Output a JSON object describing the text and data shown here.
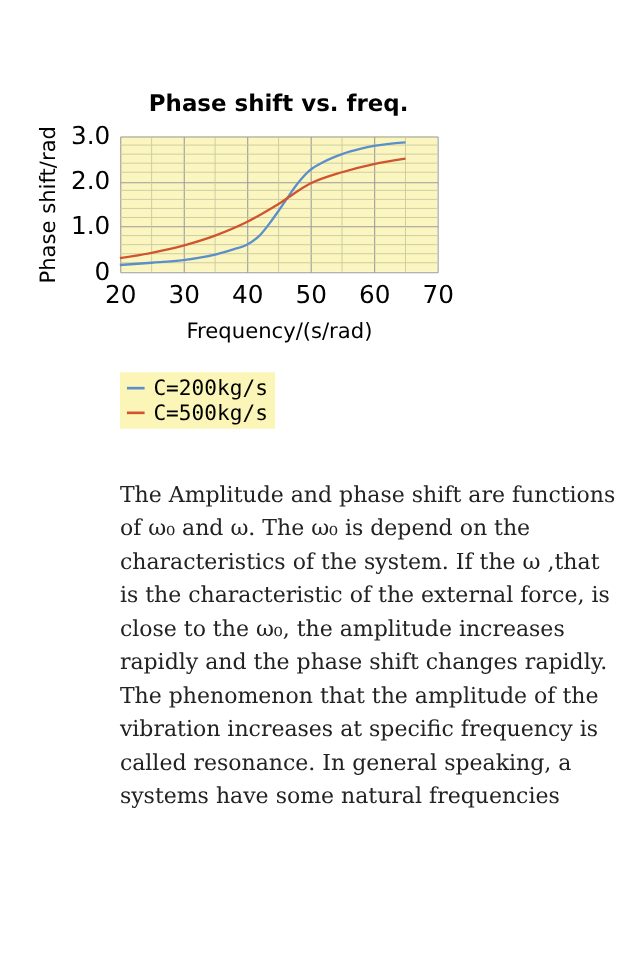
{
  "chart_data": {
    "type": "line",
    "title": "Phase shift vs. freq.",
    "xlabel": "Frequency/(s/rad)",
    "ylabel": "Phase shift/rad",
    "xlim": [
      20,
      70
    ],
    "xticks": [
      20,
      30,
      40,
      50,
      60,
      70
    ],
    "ylim": [
      0,
      3
    ],
    "yticks": [
      0,
      {
        "value": 1,
        "label": "1.0"
      },
      {
        "value": 2,
        "label": "2.0"
      },
      {
        "value": 3,
        "label": "3.0"
      }
    ],
    "grid": true,
    "legend": "bottom",
    "marker": "none",
    "line_style": "solid",
    "series": [
      {
        "name": "C=200kg/s",
        "color": "#5b8fc9",
        "x": [
          20,
          25,
          30,
          35,
          38,
          40,
          42,
          44,
          46,
          48,
          50,
          52,
          55,
          58,
          60,
          65
        ],
        "values": [
          0.15,
          0.2,
          0.26,
          0.38,
          0.5,
          0.6,
          0.8,
          1.15,
          1.55,
          1.95,
          2.25,
          2.42,
          2.6,
          2.72,
          2.78,
          2.86
        ]
      },
      {
        "name": "C=500kg/s",
        "color": "#d0542e",
        "x": [
          20,
          25,
          30,
          35,
          40,
          45,
          50,
          55,
          60,
          65
        ],
        "values": [
          0.3,
          0.42,
          0.58,
          0.8,
          1.1,
          1.5,
          1.95,
          2.2,
          2.38,
          2.5
        ]
      }
    ],
    "annotations": [
      "The Amplitude and phase shift are functions",
      "of ω₀ and ω. The ω₀ is depend on the",
      "characteristics of the system. If the ω ,that",
      "is the characteristic of the external force, is",
      "close to the ω₀, the amplitude increases",
      "rapidly and the phase shift changes rapidly.",
      "The phenomenon that the amplitude of the",
      "vibration increases at specific frequency is",
      "called resonance. In general speaking, a",
      "systems have some natural frequencies"
    ]
  }
}
